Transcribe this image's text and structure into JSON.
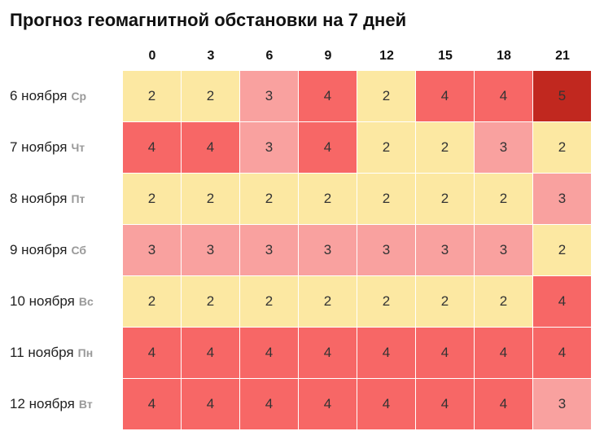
{
  "title": "Прогноз геомагнитной обстановки на 7 дней",
  "columns": [
    0,
    3,
    6,
    9,
    12,
    15,
    18,
    21
  ],
  "rows": [
    {
      "date": "6 ноября",
      "weekday": "Ср",
      "values": [
        2,
        2,
        3,
        4,
        2,
        4,
        4,
        5
      ]
    },
    {
      "date": "7 ноября",
      "weekday": "Чт",
      "values": [
        4,
        4,
        3,
        4,
        2,
        2,
        3,
        2
      ]
    },
    {
      "date": "8 ноября",
      "weekday": "Пт",
      "values": [
        2,
        2,
        2,
        2,
        2,
        2,
        2,
        3
      ]
    },
    {
      "date": "9 ноября",
      "weekday": "Сб",
      "values": [
        3,
        3,
        3,
        3,
        3,
        3,
        3,
        2
      ]
    },
    {
      "date": "10 ноября",
      "weekday": "Вс",
      "values": [
        2,
        2,
        2,
        2,
        2,
        2,
        2,
        4
      ]
    },
    {
      "date": "11 ноября",
      "weekday": "Пн",
      "values": [
        4,
        4,
        4,
        4,
        4,
        4,
        4,
        4
      ]
    },
    {
      "date": "12 ноября",
      "weekday": "Вт",
      "values": [
        4,
        4,
        4,
        4,
        4,
        4,
        4,
        3
      ]
    }
  ],
  "colors": {
    "2": "#fce8a2",
    "3": "#f9a19f",
    "4": "#f76766",
    "5": "#c1281f"
  }
}
